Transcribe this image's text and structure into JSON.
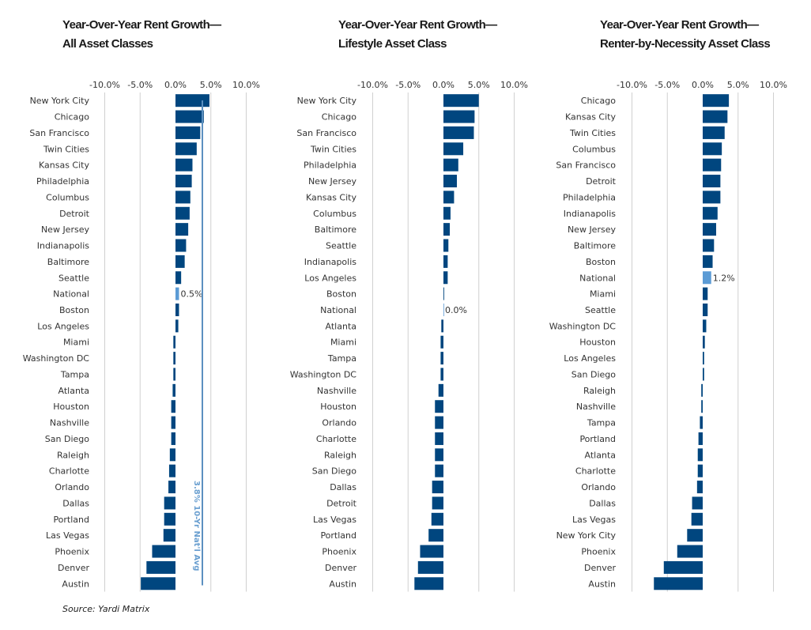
{
  "source": "Source: Yardi Matrix",
  "colors": {
    "bar": "#00467f",
    "national": "#5b9bd5",
    "grid": "#d0d0d0",
    "avg_line": "#5b8fc0"
  },
  "chart_data": [
    {
      "type": "bar",
      "orientation": "horizontal",
      "title": [
        "Year-Over-Year Rent Growth—",
        "All Asset Classes"
      ],
      "xlim": [
        -10,
        10
      ],
      "xticks": [
        "-10.0%",
        "-5.0%",
        "0.0%",
        "5.0%",
        "10.0%"
      ],
      "grid": true,
      "categories": [
        "New York City",
        "Chicago",
        "San Francisco",
        "Twin Cities",
        "Kansas City",
        "Philadelphia",
        "Columbus",
        "Detroit",
        "New Jersey",
        "Indianapolis",
        "Baltimore",
        "Seattle",
        "National",
        "Boston",
        "Los Angeles",
        "Miami",
        "Washington DC",
        "Tampa",
        "Atlanta",
        "Houston",
        "Nashville",
        "San Diego",
        "Raleigh",
        "Charlotte",
        "Orlando",
        "Dallas",
        "Portland",
        "Las Vegas",
        "Phoenix",
        "Denver",
        "Austin"
      ],
      "values": [
        4.8,
        4.0,
        3.5,
        3.0,
        2.4,
        2.3,
        2.1,
        2.0,
        1.8,
        1.5,
        1.3,
        0.8,
        0.5,
        0.5,
        0.4,
        -0.3,
        -0.3,
        -0.3,
        -0.4,
        -0.6,
        -0.6,
        -0.6,
        -0.8,
        -0.9,
        -1.0,
        -1.6,
        -1.6,
        -1.7,
        -3.3,
        -4.1,
        -4.9
      ],
      "highlight": "National",
      "highlight_label": "0.5%",
      "reference_line": {
        "value": 3.8,
        "label": "3.8% 10-Yr Nat'l Avg"
      }
    },
    {
      "type": "bar",
      "orientation": "horizontal",
      "title": [
        "Year-Over-Year Rent Growth—",
        "Lifestyle Asset Class"
      ],
      "xlim": [
        -10,
        10
      ],
      "xticks": [
        "-10.0%",
        "-5.0%",
        "0.0%",
        "5.0%",
        "10.0%"
      ],
      "grid": true,
      "categories": [
        "New York City",
        "Chicago",
        "San Francisco",
        "Twin Cities",
        "Philadelphia",
        "New Jersey",
        "Kansas City",
        "Columbus",
        "Baltimore",
        "Seattle",
        "Indianapolis",
        "Los Angeles",
        "Boston",
        "National",
        "Atlanta",
        "Miami",
        "Tampa",
        "Washington DC",
        "Nashville",
        "Houston",
        "Orlando",
        "Charlotte",
        "Raleigh",
        "San Diego",
        "Dallas",
        "Detroit",
        "Las Vegas",
        "Portland",
        "Phoenix",
        "Denver",
        "Austin"
      ],
      "values": [
        5.0,
        4.4,
        4.3,
        2.8,
        2.1,
        1.9,
        1.5,
        1.0,
        0.9,
        0.7,
        0.6,
        0.6,
        0.1,
        0.0,
        -0.3,
        -0.4,
        -0.4,
        -0.4,
        -0.7,
        -1.2,
        -1.2,
        -1.2,
        -1.2,
        -1.2,
        -1.6,
        -1.6,
        -1.7,
        -2.1,
        -3.3,
        -3.6,
        -4.1
      ],
      "highlight": "National",
      "highlight_label": "0.0%"
    },
    {
      "type": "bar",
      "orientation": "horizontal",
      "title": [
        "Year-Over-Year Rent Growth—",
        "Renter-by-Necessity Asset Class"
      ],
      "xlim": [
        -10,
        10
      ],
      "xticks": [
        "-10.0%",
        "-5.0%",
        "0.0%",
        "5.0%",
        "10.0%"
      ],
      "grid": true,
      "categories": [
        "Chicago",
        "Kansas City",
        "Twin Cities",
        "Columbus",
        "San Francisco",
        "Detroit",
        "Philadelphia",
        "Indianapolis",
        "New Jersey",
        "Baltimore",
        "Boston",
        "National",
        "Miami",
        "Seattle",
        "Washington DC",
        "Houston",
        "Los Angeles",
        "San Diego",
        "Raleigh",
        "Nashville",
        "Tampa",
        "Portland",
        "Atlanta",
        "Charlotte",
        "Orlando",
        "Dallas",
        "Las Vegas",
        "New York City",
        "Phoenix",
        "Denver",
        "Austin"
      ],
      "values": [
        3.7,
        3.5,
        3.1,
        2.7,
        2.6,
        2.5,
        2.5,
        2.1,
        1.9,
        1.6,
        1.4,
        1.2,
        0.7,
        0.7,
        0.5,
        0.3,
        0.2,
        0.2,
        -0.2,
        -0.2,
        -0.4,
        -0.6,
        -0.7,
        -0.7,
        -0.8,
        -1.5,
        -1.6,
        -2.2,
        -3.6,
        -5.5,
        -6.9
      ],
      "highlight": "National",
      "highlight_label": "1.2%"
    }
  ]
}
